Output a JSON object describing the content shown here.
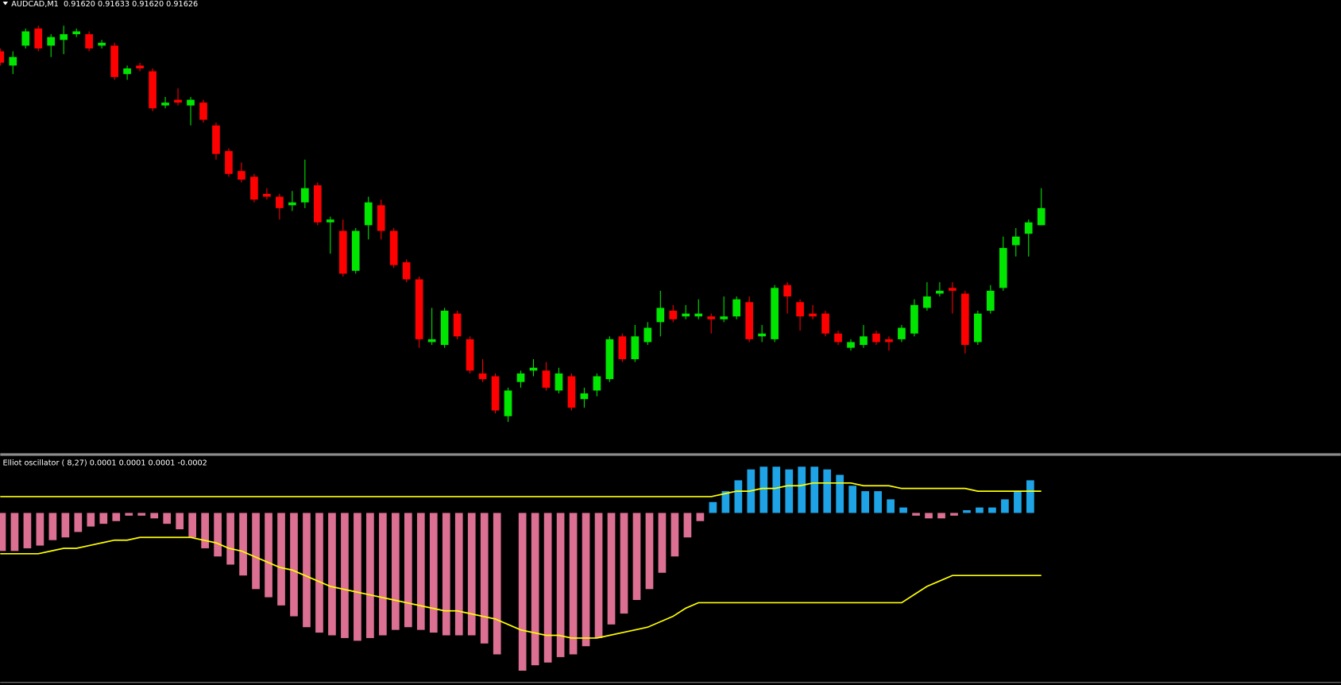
{
  "chart_data": [
    {
      "type": "candlestick",
      "title": "AUDCAD,M1  0.91620 0.91633 0.91620 0.91626",
      "up_color": "#00e600",
      "down_color": "#ff0000",
      "ylim": [
        0.9154,
        0.91699
      ],
      "open": [
        0.91681,
        0.91676,
        0.91683,
        0.91689,
        0.91683,
        0.91685,
        0.91687,
        0.91687,
        0.91683,
        0.91683,
        0.91673,
        0.91676,
        0.91674,
        0.91662,
        0.91664,
        0.91662,
        0.91663,
        0.91655,
        0.91646,
        0.91639,
        0.91637,
        0.91631,
        0.9163,
        0.91627,
        0.91628,
        0.91634,
        0.91621,
        0.91618,
        0.91604,
        0.9162,
        0.91627,
        0.91618,
        0.91607,
        0.91601,
        0.91579,
        0.91578,
        0.91589,
        0.9158,
        0.91568,
        0.91567,
        0.91553,
        0.91565,
        0.91569,
        0.91569,
        0.91562,
        0.91567,
        0.91559,
        0.91562,
        0.91566,
        0.91581,
        0.91573,
        0.91579,
        0.91586,
        0.9159,
        0.91588,
        0.91588,
        0.91588,
        0.91587,
        0.91588,
        0.91593,
        0.91581,
        0.9158,
        0.91599,
        0.91593,
        0.91589,
        0.91589,
        0.91582,
        0.91577,
        0.91578,
        0.91582,
        0.9158,
        0.9158,
        0.91582,
        0.91591,
        0.91596,
        0.91598,
        0.91596,
        0.91579,
        0.9159,
        0.91598,
        0.91613,
        0.91617,
        0.9162
      ],
      "high": [
        0.91682,
        0.91681,
        0.91689,
        0.9169,
        0.91687,
        0.9169,
        0.91689,
        0.91688,
        0.91685,
        0.91684,
        0.91676,
        0.91677,
        0.91675,
        0.91665,
        0.91668,
        0.91665,
        0.91664,
        0.91656,
        0.91647,
        0.91642,
        0.91638,
        0.91633,
        0.91631,
        0.91632,
        0.91643,
        0.91635,
        0.91623,
        0.91622,
        0.91619,
        0.9163,
        0.91629,
        0.91619,
        0.91608,
        0.91602,
        0.91591,
        0.91591,
        0.9159,
        0.91581,
        0.91573,
        0.91568,
        0.91563,
        0.91569,
        0.91573,
        0.91572,
        0.9157,
        0.91568,
        0.91563,
        0.91568,
        0.91581,
        0.91582,
        0.91585,
        0.91586,
        0.91597,
        0.91592,
        0.91592,
        0.91594,
        0.91589,
        0.91595,
        0.91595,
        0.91595,
        0.91585,
        0.91599,
        0.916,
        0.91594,
        0.91592,
        0.9159,
        0.91583,
        0.9158,
        0.91585,
        0.91583,
        0.91581,
        0.91585,
        0.91594,
        0.916,
        0.916,
        0.916,
        0.91597,
        0.9159,
        0.91599,
        0.91616,
        0.91619,
        0.91622,
        0.91633
      ],
      "low": [
        0.91676,
        0.91673,
        0.91682,
        0.91681,
        0.91679,
        0.9168,
        0.91686,
        0.91681,
        0.91682,
        0.91671,
        0.91671,
        0.91674,
        0.9166,
        0.91661,
        0.91662,
        0.91655,
        0.91656,
        0.91643,
        0.91637,
        0.91635,
        0.91628,
        0.91629,
        0.91622,
        0.91625,
        0.91626,
        0.9162,
        0.9161,
        0.91602,
        0.91603,
        0.91615,
        0.91615,
        0.91605,
        0.916,
        0.91577,
        0.91578,
        0.91577,
        0.9158,
        0.91568,
        0.91565,
        0.91554,
        0.91551,
        0.91563,
        0.91567,
        0.91562,
        0.91561,
        0.91555,
        0.91556,
        0.9156,
        0.91565,
        0.91572,
        0.91572,
        0.91578,
        0.91581,
        0.91586,
        0.91587,
        0.91587,
        0.91582,
        0.91586,
        0.91587,
        0.91579,
        0.91579,
        0.91579,
        0.91589,
        0.91583,
        0.91587,
        0.91581,
        0.91578,
        0.91576,
        0.91577,
        0.91578,
        0.91576,
        0.91579,
        0.91581,
        0.9159,
        0.91595,
        0.91589,
        0.91575,
        0.91578,
        0.91589,
        0.91597,
        0.91609,
        0.91609,
        0.9162
      ],
      "close": [
        0.91677,
        0.91679,
        0.91688,
        0.91682,
        0.91686,
        0.91687,
        0.91688,
        0.91682,
        0.91684,
        0.91672,
        0.91675,
        0.91675,
        0.91661,
        0.91663,
        0.91663,
        0.91664,
        0.91657,
        0.91645,
        0.91638,
        0.91636,
        0.91629,
        0.9163,
        0.91626,
        0.91628,
        0.91633,
        0.91621,
        0.91622,
        0.91603,
        0.91618,
        0.91628,
        0.91618,
        0.91606,
        0.91601,
        0.9158,
        0.9158,
        0.9159,
        0.91581,
        0.91569,
        0.91566,
        0.91555,
        0.91562,
        0.91568,
        0.9157,
        0.91563,
        0.91568,
        0.91556,
        0.91561,
        0.91567,
        0.9158,
        0.91573,
        0.91581,
        0.91584,
        0.91591,
        0.91587,
        0.91589,
        0.91589,
        0.91587,
        0.91588,
        0.91594,
        0.9158,
        0.91582,
        0.91598,
        0.91595,
        0.91588,
        0.91588,
        0.91582,
        0.91579,
        0.91579,
        0.91581,
        0.91579,
        0.91579,
        0.91584,
        0.91592,
        0.91595,
        0.91597,
        0.91597,
        0.91578,
        0.91589,
        0.91597,
        0.91612,
        0.91616,
        0.91621,
        0.91626
      ]
    },
    {
      "type": "oscillator",
      "title": "Elliot oscillator ( 8,27) 0.0001 0.0001 0.0001 -0.0002",
      "up_color": "#1ea4e6",
      "down_color": "#db7093",
      "ylim": [
        -0.00062,
        0.00021
      ],
      "values": [
        -0.00014,
        -0.00014,
        -0.00013,
        -0.00012,
        -0.0001,
        -9e-05,
        -7e-05,
        -5e-05,
        -4e-05,
        -3e-05,
        -1e-05,
        -1e-05,
        -2e-05,
        -4e-05,
        -6e-05,
        -9e-05,
        -0.00013,
        -0.00016,
        -0.00019,
        -0.00023,
        -0.00028,
        -0.00031,
        -0.00034,
        -0.00038,
        -0.00042,
        -0.00044,
        -0.00045,
        -0.00046,
        -0.00047,
        -0.00046,
        -0.00045,
        -0.00043,
        -0.00042,
        -0.00043,
        -0.00044,
        -0.00045,
        -0.00045,
        -0.00045,
        -0.00048,
        -0.00052,
        null,
        -0.00058,
        -0.00056,
        -0.00055,
        -0.00053,
        -0.00052,
        -0.00049,
        -0.00046,
        -0.00041,
        -0.00037,
        -0.00032,
        -0.00028,
        -0.00022,
        -0.00016,
        -9e-05,
        -3e-05,
        4e-05,
        8e-05,
        0.00012,
        0.00016,
        0.00017,
        0.00017,
        0.00016,
        0.00017,
        0.00017,
        0.00016,
        0.00014,
        0.0001,
        8e-05,
        8e-05,
        5e-05,
        2e-05,
        -1e-05,
        -2e-05,
        -2e-05,
        -1e-05,
        1e-05,
        2e-05,
        2e-05,
        5e-05,
        8e-05,
        0.00012,
        null
      ],
      "lines": [
        {
          "color": "#ffff00",
          "values": [
            6e-05,
            6e-05,
            6e-05,
            6e-05,
            6e-05,
            6e-05,
            6e-05,
            6e-05,
            6e-05,
            6e-05,
            6e-05,
            6e-05,
            6e-05,
            6e-05,
            6e-05,
            6e-05,
            6e-05,
            6e-05,
            6e-05,
            6e-05,
            6e-05,
            6e-05,
            6e-05,
            6e-05,
            6e-05,
            6e-05,
            6e-05,
            6e-05,
            6e-05,
            6e-05,
            6e-05,
            6e-05,
            6e-05,
            6e-05,
            6e-05,
            6e-05,
            6e-05,
            6e-05,
            6e-05,
            6e-05,
            6e-05,
            6e-05,
            6e-05,
            6e-05,
            6e-05,
            6e-05,
            6e-05,
            6e-05,
            6e-05,
            6e-05,
            6e-05,
            6e-05,
            6e-05,
            6e-05,
            6e-05,
            6e-05,
            6e-05,
            7e-05,
            8e-05,
            8e-05,
            9e-05,
            9e-05,
            0.0001,
            0.0001,
            0.00011,
            0.00011,
            0.00011,
            0.00011,
            0.0001,
            0.0001,
            0.0001,
            9e-05,
            9e-05,
            9e-05,
            9e-05,
            9e-05,
            9e-05,
            8e-05,
            8e-05,
            8e-05,
            8e-05,
            8e-05,
            8e-05
          ]
        },
        {
          "color": "#ffff00",
          "values": [
            -0.00015,
            -0.00015,
            -0.00015,
            -0.00015,
            -0.00014,
            -0.00013,
            -0.00013,
            -0.00012,
            -0.00011,
            -0.0001,
            -0.0001,
            -9e-05,
            -9e-05,
            -9e-05,
            -9e-05,
            -9e-05,
            -0.0001,
            -0.00011,
            -0.00013,
            -0.00014,
            -0.00016,
            -0.00018,
            -0.0002,
            -0.00021,
            -0.00023,
            -0.00025,
            -0.00027,
            -0.00028,
            -0.00029,
            -0.0003,
            -0.00031,
            -0.00032,
            -0.00033,
            -0.00034,
            -0.00035,
            -0.00036,
            -0.00036,
            -0.00037,
            -0.00038,
            -0.00039,
            -0.00041,
            -0.00043,
            -0.00044,
            -0.00045,
            -0.00045,
            -0.00046,
            -0.00046,
            -0.00046,
            -0.00045,
            -0.00044,
            -0.00043,
            -0.00042,
            -0.0004,
            -0.00038,
            -0.00035,
            -0.00033,
            -0.00033,
            -0.00033,
            -0.00033,
            -0.00033,
            -0.00033,
            -0.00033,
            -0.00033,
            -0.00033,
            -0.00033,
            -0.00033,
            -0.00033,
            -0.00033,
            -0.00033,
            -0.00033,
            -0.00033,
            -0.00033,
            -0.0003,
            -0.00027,
            -0.00025,
            -0.00023,
            -0.00023,
            -0.00023,
            -0.00023,
            -0.00023,
            -0.00023,
            -0.00023,
            -0.00023
          ]
        }
      ]
    }
  ]
}
